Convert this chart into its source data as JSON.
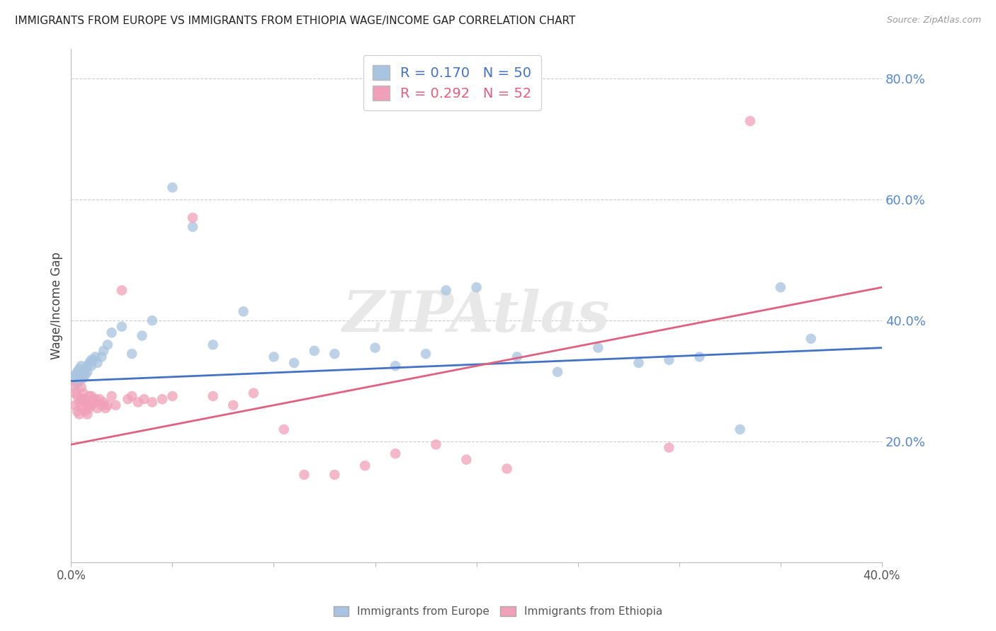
{
  "title": "IMMIGRANTS FROM EUROPE VS IMMIGRANTS FROM ETHIOPIA WAGE/INCOME GAP CORRELATION CHART",
  "source": "Source: ZipAtlas.com",
  "ylabel": "Wage/Income Gap",
  "x_min": 0.0,
  "x_max": 0.4,
  "y_min": 0.0,
  "y_max": 0.85,
  "x_ticks": [
    0.0,
    0.05,
    0.1,
    0.15,
    0.2,
    0.25,
    0.3,
    0.35,
    0.4
  ],
  "x_tick_labels_show": [
    "0.0%",
    "",
    "",
    "",
    "",
    "",
    "",
    "",
    "40.0%"
  ],
  "y_ticks_right": [
    0.2,
    0.4,
    0.6,
    0.8
  ],
  "y_tick_labels_right": [
    "20.0%",
    "40.0%",
    "60.0%",
    "80.0%"
  ],
  "blue_R": 0.17,
  "blue_N": 50,
  "pink_R": 0.292,
  "pink_N": 52,
  "blue_color": "#A8C4E0",
  "pink_color": "#F0A0B8",
  "blue_line_color": "#4472C4",
  "pink_line_color": "#E06080",
  "blue_label": "Immigrants from Europe",
  "pink_label": "Immigrants from Ethiopia",
  "watermark": "ZIPAtlas",
  "blue_line_x0": 0.0,
  "blue_line_y0": 0.3,
  "blue_line_x1": 0.4,
  "blue_line_y1": 0.355,
  "pink_line_x0": 0.0,
  "pink_line_y0": 0.195,
  "pink_line_x1": 0.4,
  "pink_line_y1": 0.455,
  "blue_x": [
    0.001,
    0.002,
    0.003,
    0.003,
    0.004,
    0.004,
    0.005,
    0.005,
    0.006,
    0.006,
    0.007,
    0.007,
    0.008,
    0.008,
    0.009,
    0.01,
    0.01,
    0.011,
    0.012,
    0.013,
    0.015,
    0.016,
    0.018,
    0.02,
    0.025,
    0.03,
    0.035,
    0.04,
    0.05,
    0.06,
    0.07,
    0.085,
    0.1,
    0.11,
    0.12,
    0.13,
    0.15,
    0.16,
    0.175,
    0.185,
    0.2,
    0.22,
    0.24,
    0.26,
    0.28,
    0.295,
    0.31,
    0.33,
    0.35,
    0.365
  ],
  "blue_y": [
    0.305,
    0.31,
    0.295,
    0.315,
    0.3,
    0.32,
    0.31,
    0.325,
    0.305,
    0.315,
    0.31,
    0.32,
    0.325,
    0.315,
    0.33,
    0.335,
    0.325,
    0.335,
    0.34,
    0.33,
    0.34,
    0.35,
    0.36,
    0.38,
    0.39,
    0.345,
    0.375,
    0.4,
    0.62,
    0.555,
    0.36,
    0.415,
    0.34,
    0.33,
    0.35,
    0.345,
    0.355,
    0.325,
    0.345,
    0.45,
    0.455,
    0.34,
    0.315,
    0.355,
    0.33,
    0.335,
    0.34,
    0.22,
    0.455,
    0.37
  ],
  "pink_x": [
    0.001,
    0.002,
    0.002,
    0.003,
    0.003,
    0.004,
    0.004,
    0.005,
    0.005,
    0.006,
    0.006,
    0.006,
    0.007,
    0.007,
    0.008,
    0.008,
    0.009,
    0.009,
    0.01,
    0.01,
    0.011,
    0.012,
    0.013,
    0.014,
    0.015,
    0.016,
    0.017,
    0.018,
    0.02,
    0.022,
    0.025,
    0.028,
    0.03,
    0.033,
    0.036,
    0.04,
    0.045,
    0.05,
    0.06,
    0.07,
    0.08,
    0.09,
    0.105,
    0.115,
    0.13,
    0.145,
    0.16,
    0.18,
    0.195,
    0.215,
    0.295,
    0.335
  ],
  "pink_y": [
    0.29,
    0.28,
    0.26,
    0.275,
    0.25,
    0.265,
    0.245,
    0.29,
    0.27,
    0.28,
    0.255,
    0.27,
    0.265,
    0.25,
    0.26,
    0.245,
    0.275,
    0.255,
    0.26,
    0.275,
    0.265,
    0.27,
    0.255,
    0.27,
    0.26,
    0.265,
    0.255,
    0.26,
    0.275,
    0.26,
    0.45,
    0.27,
    0.275,
    0.265,
    0.27,
    0.265,
    0.27,
    0.275,
    0.57,
    0.275,
    0.26,
    0.28,
    0.22,
    0.145,
    0.145,
    0.16,
    0.18,
    0.195,
    0.17,
    0.155,
    0.19,
    0.73
  ]
}
